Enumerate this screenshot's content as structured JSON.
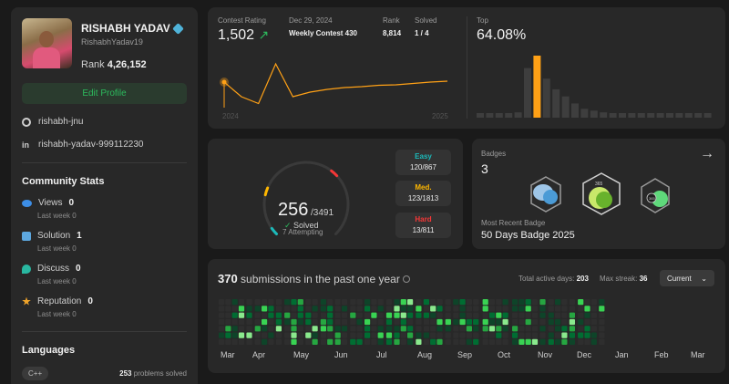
{
  "profile": {
    "name": "RISHABH YADAV",
    "username": "RishabhYadav19",
    "rank_label": "Rank",
    "rank_value": "4,26,152",
    "edit_label": "Edit Profile",
    "github": "rishabh-jnu",
    "linkedin": "rishabh-yadav-999112230",
    "linkedin_icon": "in"
  },
  "community": {
    "title": "Community Stats",
    "items": [
      {
        "label": "Views",
        "value": "0",
        "sub": "Last week 0",
        "icon": "eye-icon"
      },
      {
        "label": "Solution",
        "value": "1",
        "sub": "Last week 0",
        "icon": "solution-icon"
      },
      {
        "label": "Discuss",
        "value": "0",
        "sub": "Last week 0",
        "icon": "discuss-icon"
      },
      {
        "label": "Reputation",
        "value": "0",
        "sub": "Last week 0",
        "icon": "star-icon"
      }
    ]
  },
  "languages": {
    "title": "Languages",
    "name": "C++",
    "count": "253",
    "count_suffix": "problems solved"
  },
  "contest": {
    "rating_label": "Contest Rating",
    "rating_value": "1,502",
    "date_label": "Dec 29, 2024",
    "contest_name": "Weekly Contest 430",
    "rank_label": "Rank",
    "rank_value": "8,814",
    "solved_label": "Solved",
    "solved_value": "1 / 4",
    "year_start": "2024",
    "year_end": "2025",
    "top_label": "Top",
    "top_value": "64.08%",
    "line_points": [
      1500,
      1468,
      1453,
      1540,
      1468,
      1478,
      1484,
      1488,
      1490,
      1493,
      1494,
      1497,
      1500,
      1502
    ],
    "histogram": [
      2,
      2,
      2,
      2,
      3,
      28,
      35,
      22,
      16,
      12,
      8,
      5,
      4,
      3,
      2,
      2,
      2,
      2,
      2,
      2,
      2,
      2,
      2,
      1,
      1
    ],
    "highlight_index": 6
  },
  "problems": {
    "solved": "256",
    "total": "/3491",
    "solved_label": "Solved",
    "attempting": "7 Attempting",
    "solved_fraction": 0.0733,
    "easy_label": "Easy",
    "easy_value": "120/867",
    "med_label": "Med.",
    "med_value": "123/1813",
    "hard_label": "Hard",
    "hard_value": "13/811",
    "colors": {
      "easy": "#1cbaba",
      "medium": "#ffb700",
      "hard": "#f63737"
    }
  },
  "badges": {
    "label": "Badges",
    "count": "3",
    "recent_label": "Most Recent Badge",
    "recent_name": "50 Days Badge 2025",
    "badge_text": "365"
  },
  "heatmap": {
    "count": "370",
    "title_suffix": "submissions in the past one year",
    "active_label": "Total active days:",
    "active_value": "203",
    "streak_label": "Max streak:",
    "streak_value": "36",
    "current_label": "Current",
    "months": [
      "Mar",
      "Apr",
      "May",
      "Jun",
      "Jul",
      "Aug",
      "Sep",
      "Oct",
      "Nov",
      "Dec",
      "Jan",
      "Feb",
      "Mar"
    ]
  }
}
